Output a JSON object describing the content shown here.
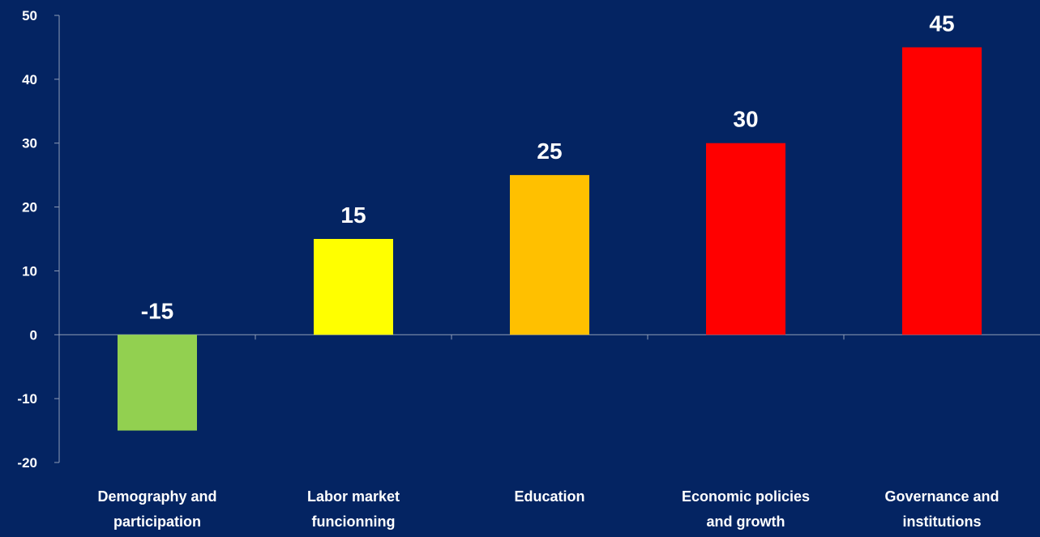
{
  "chart_data": {
    "type": "bar",
    "categories": [
      [
        "Demography and",
        "participation"
      ],
      [
        "Labor market",
        "funcionning"
      ],
      [
        "Education"
      ],
      [
        "Economic policies",
        "and growth"
      ],
      [
        "Governance and",
        "institutions"
      ]
    ],
    "values": [
      -15,
      15,
      25,
      30,
      45
    ],
    "bar_colors": [
      "#92D050",
      "#FFFF00",
      "#FFC000",
      "#FF0000",
      "#FF0000"
    ],
    "data_labels": [
      "-15",
      "15",
      "25",
      "30",
      "45"
    ],
    "yticks": [
      -20,
      -10,
      0,
      10,
      20,
      30,
      40,
      50
    ],
    "ylim": [
      -20,
      50
    ],
    "grid": false,
    "legend": "none",
    "title": "",
    "xlabel": "",
    "ylabel": ""
  },
  "colors": {
    "background": "#042462",
    "axis": "#8E9BB5",
    "text": "#FFFFFF"
  }
}
